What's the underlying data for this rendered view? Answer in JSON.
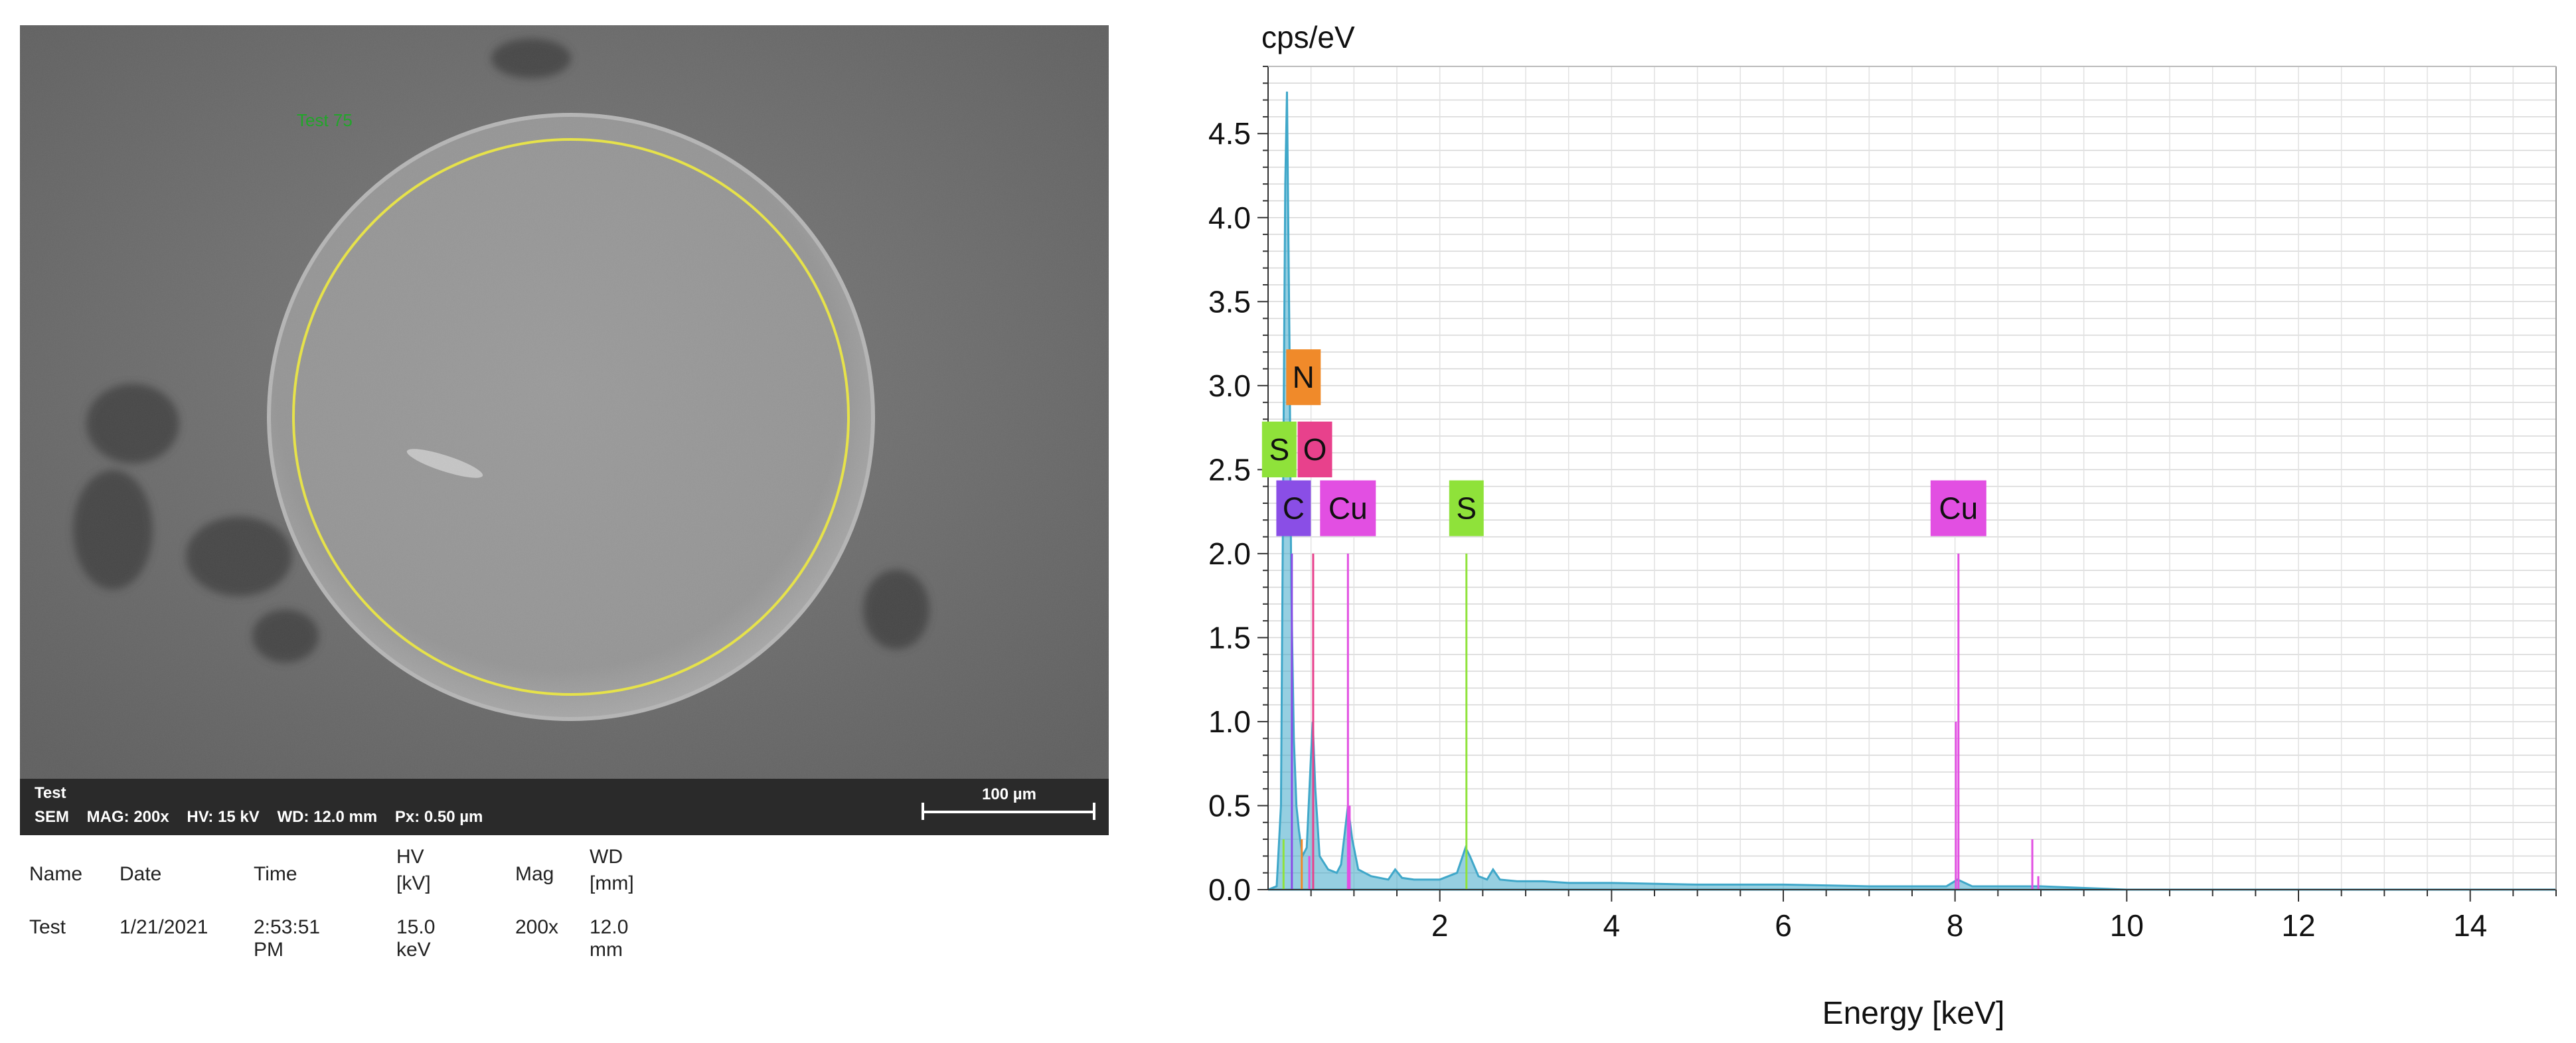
{
  "sem": {
    "annotation": "Test 75",
    "sample_name": "Test",
    "info_line": "SEM    MAG: 200x    HV: 15 kV    WD: 12.0 mm    Px: 0.50 µm",
    "scale_bar_label": "100 µm",
    "colors": {
      "annotation": "#22a52a",
      "roi_circle": "#e6e24a"
    }
  },
  "metadata": {
    "headers": [
      "Name",
      "Date",
      "Time",
      "HV\n[kV]",
      "Mag",
      "WD\n[mm]"
    ],
    "values": [
      "Test",
      "1/21/2021",
      "2:53:51 PM",
      "15.0 keV",
      "200x",
      "12.0 mm"
    ]
  },
  "chart_data": {
    "type": "line",
    "ylabel": "cps/eV",
    "xlabel": "Energy [keV]",
    "xlim": [
      0,
      15
    ],
    "ylim": [
      0,
      4.9
    ],
    "xticks": [
      "2",
      "4",
      "6",
      "8",
      "10",
      "12",
      "14"
    ],
    "yticks": [
      "0.0",
      "0.5",
      "1.0",
      "1.5",
      "2.0",
      "2.5",
      "3.0",
      "3.5",
      "4.0",
      "4.5"
    ],
    "grid": true,
    "series": [
      {
        "color": "#3fa7c9",
        "x": [
          0.0,
          0.1,
          0.15,
          0.2,
          0.22,
          0.25,
          0.27,
          0.3,
          0.33,
          0.36,
          0.4,
          0.45,
          0.5,
          0.52,
          0.55,
          0.6,
          0.7,
          0.8,
          0.85,
          0.93,
          0.98,
          1.05,
          1.2,
          1.4,
          1.48,
          1.56,
          1.7,
          2.0,
          2.2,
          2.3,
          2.35,
          2.45,
          2.55,
          2.62,
          2.7,
          2.9,
          3.2,
          3.5,
          4.0,
          5.0,
          6.0,
          7.0,
          7.5,
          7.9,
          8.03,
          8.2,
          8.5,
          8.9,
          9.0,
          10.0,
          15.0
        ],
        "y": [
          0.0,
          0.02,
          0.5,
          4.2,
          4.75,
          3.2,
          1.8,
          0.9,
          0.5,
          0.35,
          0.2,
          0.25,
          0.8,
          1.0,
          0.6,
          0.2,
          0.12,
          0.1,
          0.15,
          0.5,
          0.3,
          0.12,
          0.08,
          0.06,
          0.12,
          0.07,
          0.06,
          0.06,
          0.1,
          0.25,
          0.2,
          0.08,
          0.06,
          0.12,
          0.06,
          0.05,
          0.05,
          0.04,
          0.04,
          0.03,
          0.03,
          0.02,
          0.02,
          0.02,
          0.06,
          0.02,
          0.02,
          0.02,
          0.02,
          0.0,
          0.0
        ]
      }
    ],
    "peak_markers": [
      {
        "element": "C",
        "x": 0.277,
        "height": 2.0,
        "label_y": 2.27,
        "label_x_offset": 0.02,
        "color": "#8a4ee6"
      },
      {
        "element": "N",
        "x": 0.392,
        "height": 0.3,
        "label_y": 3.05,
        "label_x_offset": 0.02,
        "color": "#f08a2a"
      },
      {
        "element": "S",
        "x": 0.18,
        "height": 0.3,
        "label_y": 2.62,
        "label_x_offset": -0.05,
        "color": "#8fe23a"
      },
      {
        "element": "O",
        "x": 0.525,
        "height": 2.0,
        "label_y": 2.62,
        "label_x_offset": 0.02,
        "color": "#e8418c"
      },
      {
        "element": "Cu",
        "x": 0.93,
        "height": 2.0,
        "label_y": 2.27,
        "label_x_offset": 0.0,
        "color": "#e24fe2"
      },
      {
        "element": "S",
        "x": 2.31,
        "height": 2.0,
        "label_y": 2.27,
        "label_x_offset": 0.0,
        "color": "#8fe23a"
      },
      {
        "element": "Cu",
        "x": 8.04,
        "height": 2.0,
        "label_y": 2.27,
        "label_x_offset": 0.0,
        "color": "#e24fe2"
      }
    ],
    "minor_lines": [
      {
        "x": 0.48,
        "height": 0.2,
        "color": "#e24fe2"
      },
      {
        "x": 0.95,
        "height": 0.5,
        "color": "#e24fe2"
      },
      {
        "x": 8.01,
        "height": 1.0,
        "color": "#e24fe2"
      },
      {
        "x": 8.9,
        "height": 0.3,
        "color": "#e24fe2"
      },
      {
        "x": 8.97,
        "height": 0.08,
        "color": "#e24fe2"
      }
    ]
  }
}
